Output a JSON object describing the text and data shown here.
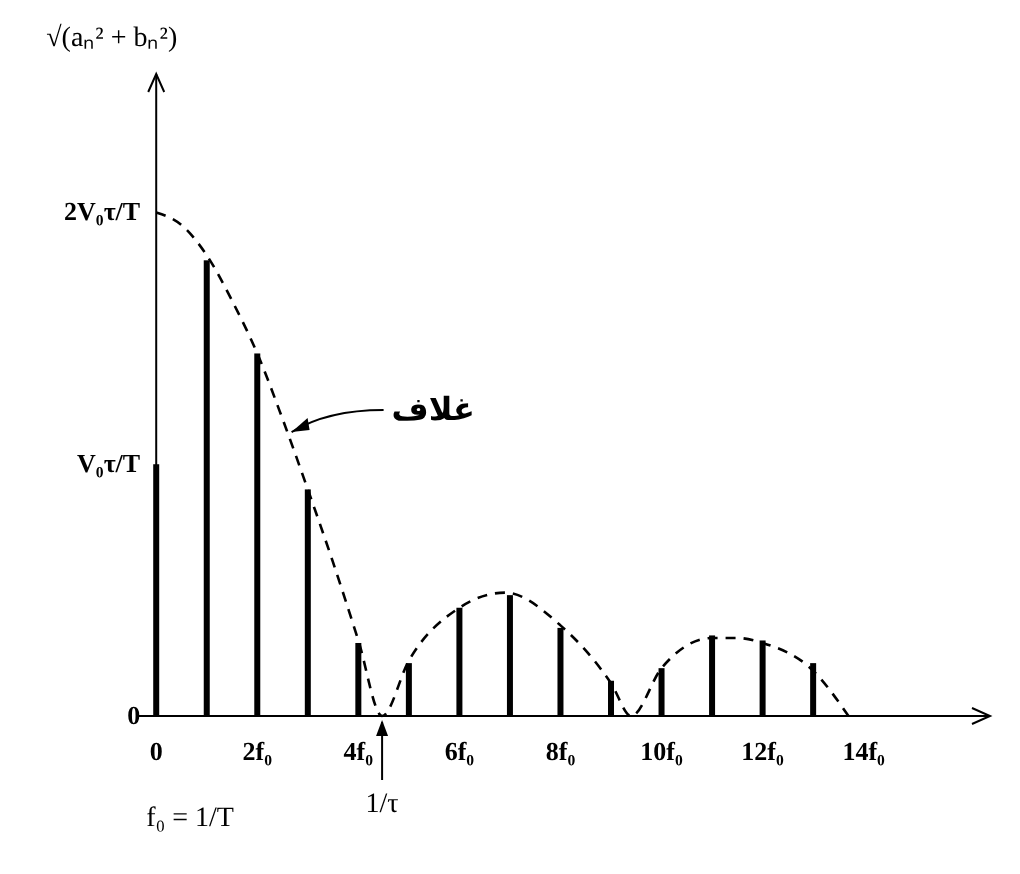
{
  "chart_data": {
    "type": "bar",
    "ylabel": "√(aₙ² + bₙ²)",
    "xlim": [
      -0.4,
      16.5
    ],
    "ylim": [
      0,
      2.55
    ],
    "xticks": [
      0,
      {
        "value": 2,
        "label": "2f₀"
      },
      {
        "value": 4,
        "label": "4f₀"
      },
      {
        "value": 6,
        "label": "6f₀"
      },
      {
        "value": 8,
        "label": "8f₀"
      },
      {
        "value": 10,
        "label": "10f₀"
      },
      {
        "value": 12,
        "label": "12f₀"
      },
      {
        "value": 14,
        "label": "14f₀"
      }
    ],
    "yticks": [
      0,
      {
        "value": 1,
        "label": "V₀τ/T"
      },
      {
        "value": 2,
        "label": "2V₀τ/T"
      }
    ],
    "series": [
      {
        "color": "#000000",
        "x": [
          0,
          1,
          2,
          3,
          4,
          5,
          6,
          7,
          8,
          9,
          10,
          11,
          12,
          13
        ],
        "values": [
          1,
          1.81,
          1.44,
          0.9,
          0.29,
          0.21,
          0.43,
          0.48,
          0.35,
          0.14,
          0.19,
          0.32,
          0.3,
          0.21
        ]
      },
      {
        "type": "line",
        "color": "#000000",
        "line_style": "dashed",
        "x": [
          0,
          0.5,
          1,
          1.5,
          2,
          2.5,
          3,
          3.5,
          4,
          4.47,
          5,
          6,
          6.9,
          8,
          9,
          9.4,
          10,
          11,
          11.5,
          12,
          13,
          13.7
        ],
        "values": [
          2,
          1.95,
          1.83,
          1.65,
          1.44,
          1.18,
          0.9,
          0.61,
          0.3,
          0,
          0.22,
          0.43,
          0.49,
          0.36,
          0.13,
          0,
          0.19,
          0.31,
          0.31,
          0.29,
          0.18,
          0
        ]
      }
    ],
    "annotations": [
      {
        "text": "غلاف",
        "x": 2.6,
        "y": 1.12
      },
      {
        "text": "1/τ",
        "x": 4.47,
        "y": 0
      },
      "f₀ = 1/T"
    ]
  }
}
